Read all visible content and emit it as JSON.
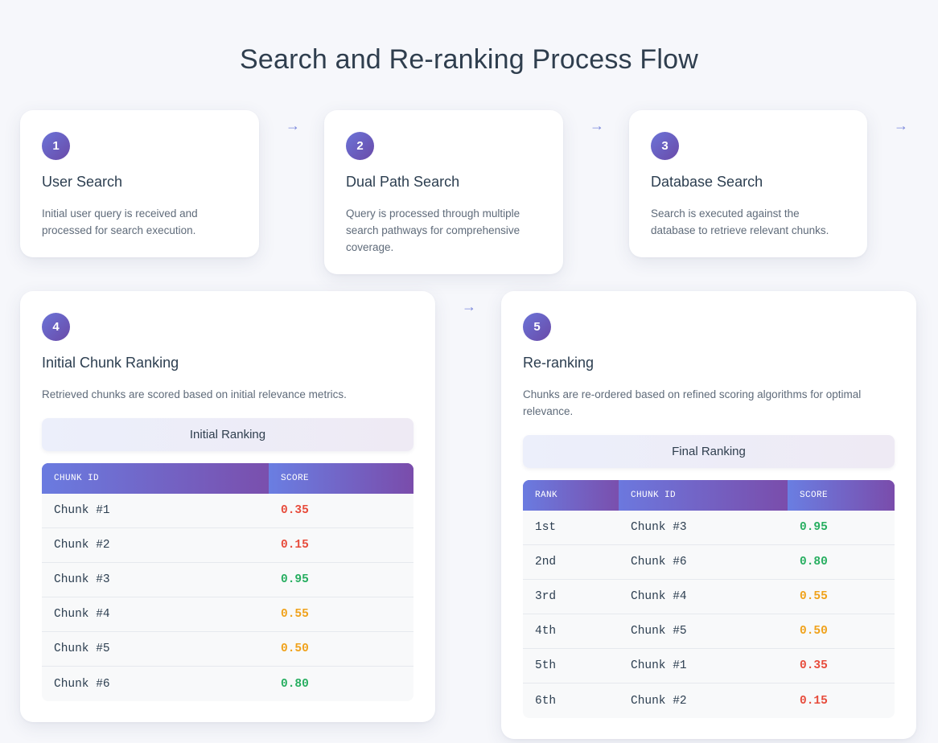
{
  "title": "Search and Re-ranking Process Flow",
  "colors": {
    "accent_start": "#6b74d8",
    "accent_end": "#6a4aa8",
    "score_high": "#27ae60",
    "score_mid": "#f0a21b",
    "score_low": "#e74c3c"
  },
  "arrow_glyph": "→",
  "steps": [
    {
      "number": "1",
      "title": "User Search",
      "description": "Initial user query is received and processed for search execution."
    },
    {
      "number": "2",
      "title": "Dual Path Search",
      "description": "Query is processed through multiple search pathways for comprehensive coverage."
    },
    {
      "number": "3",
      "title": "Database Search",
      "description": "Search is executed against the database to retrieve relevant chunks."
    },
    {
      "number": "4",
      "title": "Initial Chunk Ranking",
      "description": "Retrieved chunks are scored based on initial relevance metrics."
    },
    {
      "number": "5",
      "title": "Re-ranking",
      "description": "Chunks are re-ordered based on refined scoring algorithms for optimal relevance."
    }
  ],
  "initial_ranking": {
    "heading": "Initial Ranking",
    "columns": [
      "CHUNK ID",
      "SCORE"
    ],
    "rows": [
      {
        "chunk": "Chunk #1",
        "score": "0.35",
        "level": "low"
      },
      {
        "chunk": "Chunk #2",
        "score": "0.15",
        "level": "low"
      },
      {
        "chunk": "Chunk #3",
        "score": "0.95",
        "level": "high"
      },
      {
        "chunk": "Chunk #4",
        "score": "0.55",
        "level": "mid"
      },
      {
        "chunk": "Chunk #5",
        "score": "0.50",
        "level": "mid"
      },
      {
        "chunk": "Chunk #6",
        "score": "0.80",
        "level": "high"
      }
    ]
  },
  "final_ranking": {
    "heading": "Final Ranking",
    "columns": [
      "RANK",
      "CHUNK ID",
      "SCORE"
    ],
    "rows": [
      {
        "rank": "1st",
        "chunk": "Chunk #3",
        "score": "0.95",
        "level": "high"
      },
      {
        "rank": "2nd",
        "chunk": "Chunk #6",
        "score": "0.80",
        "level": "high"
      },
      {
        "rank": "3rd",
        "chunk": "Chunk #4",
        "score": "0.55",
        "level": "mid"
      },
      {
        "rank": "4th",
        "chunk": "Chunk #5",
        "score": "0.50",
        "level": "mid"
      },
      {
        "rank": "5th",
        "chunk": "Chunk #1",
        "score": "0.35",
        "level": "low"
      },
      {
        "rank": "6th",
        "chunk": "Chunk #2",
        "score": "0.15",
        "level": "low"
      }
    ]
  }
}
